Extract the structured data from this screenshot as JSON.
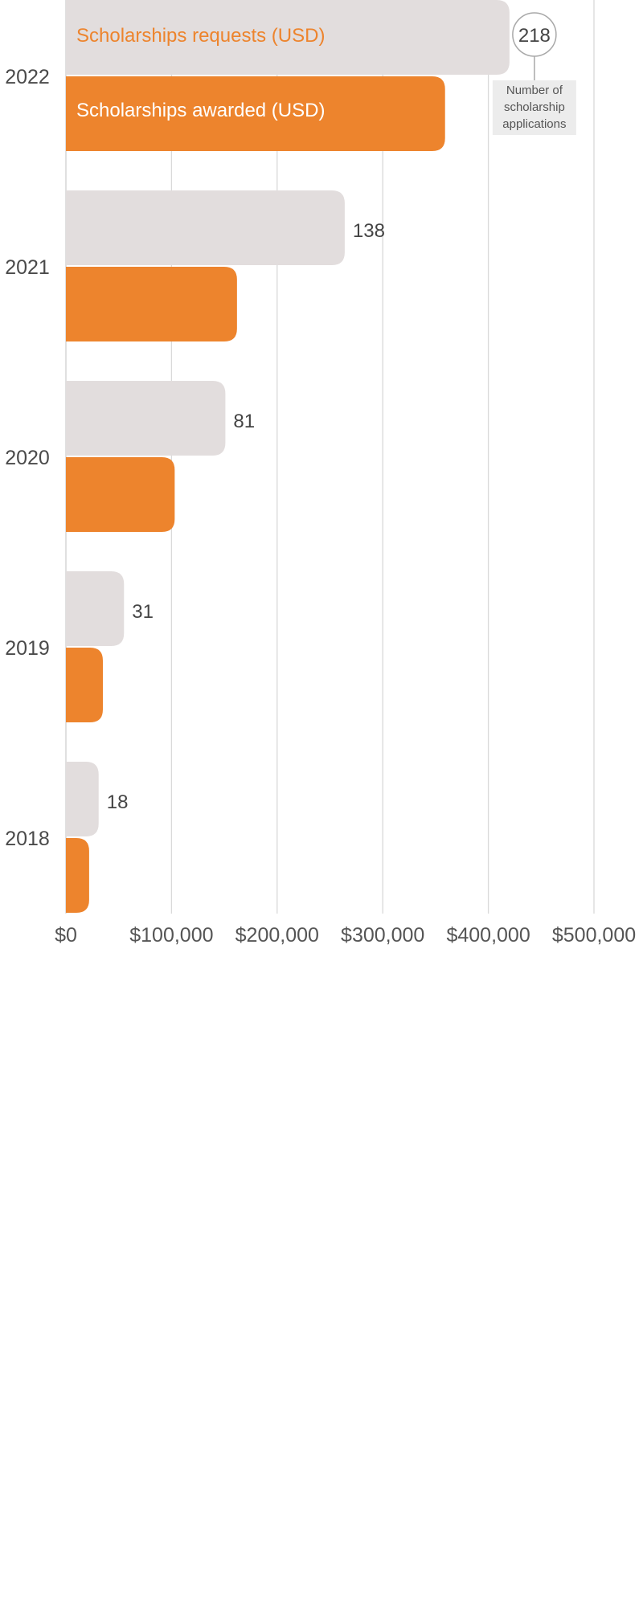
{
  "chart_data": {
    "type": "bar",
    "orientation": "horizontal",
    "categories": [
      "2022",
      "2021",
      "2020",
      "2019",
      "2018"
    ],
    "series": [
      {
        "name": "Scholarships requests (USD)",
        "color": "#e2dddd",
        "values": [
          420000,
          264000,
          151000,
          55000,
          31000
        ]
      },
      {
        "name": "Scholarships awarded (USD)",
        "color": "#ed842d",
        "values": [
          359000,
          162000,
          103000,
          35000,
          22000
        ]
      }
    ],
    "applications": [
      218,
      138,
      81,
      31,
      18
    ],
    "applications_note": "Number of scholarship applications",
    "xticks": [
      "$0",
      "$100,000",
      "$200,000",
      "$300,000",
      "$400,000",
      "$500,000"
    ],
    "xlim": [
      0,
      500000
    ],
    "grid": true,
    "legend": "inside-first-bars"
  }
}
